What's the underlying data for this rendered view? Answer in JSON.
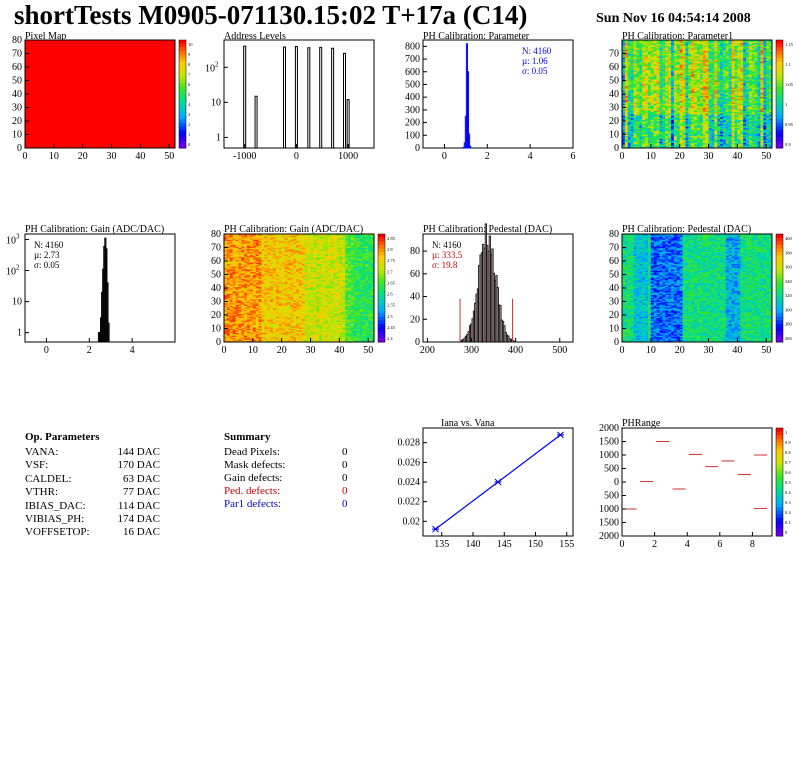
{
  "header": {
    "title": "shortTests M0905-071130.15:02 T+17a (C14)",
    "date": "Sun Nov 16 04:54:14 2008"
  },
  "colors": {
    "histogram": "#000000",
    "fit_blue": "#0000ff",
    "stats_red": "#cc0000",
    "ped_fill": "#cc3333",
    "pixel_map_fill": "#ff0000"
  },
  "colorbar_ticks": {
    "pixel_map": [
      "10",
      "9",
      "8",
      "7",
      "6",
      "5",
      "4",
      "3",
      "2",
      "1",
      "0"
    ],
    "parameter1": [
      "1.15",
      "1.1",
      "1.05",
      "1",
      "0.95",
      "0.9"
    ],
    "gain_map": [
      "2.85",
      "2.8",
      "2.75",
      "2.7",
      "2.65",
      "2.6",
      "2.55",
      "2.5",
      "2.45",
      "2.4"
    ],
    "pedestal_map": [
      "400",
      "380",
      "360",
      "340",
      "320",
      "300",
      "280",
      "260"
    ],
    "phrange": [
      "1",
      "0.9",
      "0.8",
      "0.7",
      "0.6",
      "0.5",
      "0.4",
      "0.3",
      "0.2",
      "0.1",
      "0"
    ]
  },
  "chart_data": [
    {
      "id": "pixel_map",
      "type": "heatmap",
      "title": "Pixel Map",
      "xlim": [
        0,
        52
      ],
      "ylim": [
        0,
        80
      ],
      "x_ticks": [
        "0",
        "10",
        "20",
        "30",
        "40",
        "50"
      ],
      "y_ticks": [
        "0",
        "10",
        "20",
        "30",
        "40",
        "50",
        "60",
        "70",
        "80"
      ],
      "uniform_value": 10,
      "z_range": [
        0,
        10
      ]
    },
    {
      "id": "address_levels",
      "type": "bar",
      "title": "Address Levels",
      "x_ticks": [
        "-1000",
        "0",
        "1000"
      ],
      "xlim": [
        -1400,
        1500
      ],
      "log_y": true,
      "ylim": [
        0.5,
        600
      ],
      "y_ticks": [
        "1",
        "10",
        "10^2"
      ],
      "peaks": [
        {
          "x": -1000,
          "y": 400
        },
        {
          "x": -780,
          "y": 15
        },
        {
          "x": -230,
          "y": 380
        },
        {
          "x": 0,
          "y": 390
        },
        {
          "x": 240,
          "y": 360
        },
        {
          "x": 470,
          "y": 370
        },
        {
          "x": 700,
          "y": 350
        },
        {
          "x": 930,
          "y": 250
        },
        {
          "x": 1000,
          "y": 12
        }
      ]
    },
    {
      "id": "ph_parameter",
      "type": "bar",
      "title": "PH Calibration: Parameter",
      "xlim": [
        -1,
        6
      ],
      "ylim": [
        0,
        850
      ],
      "x_ticks": [
        "0",
        "2",
        "4",
        "6"
      ],
      "y_ticks": [
        "0",
        "100",
        "200",
        "300",
        "400",
        "500",
        "600",
        "700",
        "800"
      ],
      "stats": {
        "n": "N: 4160",
        "mu": "µ: 1.06",
        "sigma": "σ: 0.05"
      },
      "bins": [
        {
          "x": 0.9,
          "y": 5
        },
        {
          "x": 0.95,
          "y": 40
        },
        {
          "x": 1.0,
          "y": 250
        },
        {
          "x": 1.05,
          "y": 820
        },
        {
          "x": 1.1,
          "y": 600
        },
        {
          "x": 1.15,
          "y": 110
        },
        {
          "x": 1.2,
          "y": 15
        }
      ]
    },
    {
      "id": "ph_parameter1",
      "type": "heatmap",
      "title": "PH Calibration: Parameter1",
      "xlim": [
        0,
        52
      ],
      "ylim": [
        0,
        80
      ],
      "x_ticks": [
        "0",
        "10",
        "20",
        "30",
        "40",
        "50"
      ],
      "y_ticks": [
        "0",
        "10",
        "20",
        "30",
        "40",
        "50",
        "60",
        "70"
      ],
      "z_range": [
        0.88,
        1.17
      ]
    },
    {
      "id": "ph_gain",
      "type": "bar",
      "title": "PH Calibration: Gain (ADC/DAC)",
      "xlim": [
        -1,
        6
      ],
      "log_y": true,
      "ylim": [
        0.5,
        1500
      ],
      "x_ticks": [
        "0",
        "2",
        "4"
      ],
      "y_ticks": [
        "1",
        "10",
        "10^2",
        "10^3"
      ],
      "stats": {
        "n": "N: 4160",
        "mu": "µ: 2.73",
        "sigma": "σ: 0.05"
      },
      "bins": [
        {
          "x": 2.45,
          "y": 1
        },
        {
          "x": 2.5,
          "y": 1
        },
        {
          "x": 2.55,
          "y": 3
        },
        {
          "x": 2.6,
          "y": 20
        },
        {
          "x": 2.65,
          "y": 110
        },
        {
          "x": 2.7,
          "y": 600
        },
        {
          "x": 2.75,
          "y": 1100
        },
        {
          "x": 2.8,
          "y": 500
        },
        {
          "x": 2.85,
          "y": 40
        },
        {
          "x": 2.9,
          "y": 2
        }
      ]
    },
    {
      "id": "gain_map",
      "type": "heatmap",
      "title": "PH Calibration: Gain (ADC/DAC)",
      "xlim": [
        0,
        52
      ],
      "ylim": [
        0,
        80
      ],
      "x_ticks": [
        "0",
        "10",
        "20",
        "30",
        "40",
        "50"
      ],
      "y_ticks": [
        "0",
        "10",
        "20",
        "30",
        "40",
        "50",
        "60",
        "70",
        "80"
      ],
      "z_range": [
        2.4,
        2.85
      ]
    },
    {
      "id": "ph_pedestal",
      "type": "bar",
      "title": "PH Calibration: Pedestal (DAC)",
      "xlim": [
        190,
        530
      ],
      "ylim": [
        0,
        95
      ],
      "x_ticks": [
        "200",
        "300",
        "400",
        "500"
      ],
      "y_ticks": [
        "0",
        "20",
        "40",
        "60",
        "80"
      ],
      "stats": {
        "n": "N: 4160",
        "mu": "µ: 333.5",
        "sigma": "σ: 19.8"
      },
      "cut_lines": [
        274,
        393
      ],
      "mean": 333.5,
      "sigma": 19.8,
      "peak": 92
    },
    {
      "id": "pedestal_map",
      "type": "heatmap",
      "title": "PH Calibration: Pedestal (DAC)",
      "xlim": [
        0,
        52
      ],
      "ylim": [
        0,
        80
      ],
      "x_ticks": [
        "0",
        "10",
        "20",
        "30",
        "40",
        "50"
      ],
      "y_ticks": [
        "0",
        "10",
        "20",
        "30",
        "40",
        "50",
        "60",
        "70",
        "80"
      ],
      "z_range": [
        250,
        410
      ]
    },
    {
      "id": "iana_vs_vana",
      "type": "line",
      "title": "Iana vs. Vana",
      "xlim": [
        132,
        156
      ],
      "ylim": [
        0.0185,
        0.0295
      ],
      "x_ticks": [
        "135",
        "140",
        "145",
        "150",
        "155"
      ],
      "y_ticks": [
        "0.02",
        "0.022",
        "0.024",
        "0.026",
        "0.028"
      ],
      "x": [
        134,
        144,
        154
      ],
      "y": [
        0.0192,
        0.024,
        0.0288
      ]
    },
    {
      "id": "phrange",
      "type": "scatter",
      "title": "PHRange",
      "xlim": [
        0,
        9.2
      ],
      "ylim": [
        -2000,
        2000
      ],
      "x_ticks": [
        "0",
        "2",
        "4",
        "6",
        "8"
      ],
      "y_ticks": [
        "2000",
        "1500",
        "1000",
        "500",
        "0",
        "-500",
        "-1000",
        "-1500",
        "-2000"
      ],
      "y_tick_labels": [
        "2000",
        "1500",
        "1000",
        "500",
        "0",
        "500",
        "1000",
        "1500",
        "2000"
      ],
      "segments": [
        {
          "x0": 0,
          "x1": 1,
          "y": -1000
        },
        {
          "x0": 1,
          "x1": 2,
          "y": 20
        },
        {
          "x0": 2,
          "x1": 3,
          "y": 1500
        },
        {
          "x0": 3,
          "x1": 4,
          "y": -260
        },
        {
          "x0": 4,
          "x1": 5,
          "y": 1020
        },
        {
          "x0": 5,
          "x1": 6,
          "y": 570
        },
        {
          "x0": 6,
          "x1": 7,
          "y": 780
        },
        {
          "x0": 7,
          "x1": 8,
          "y": 280
        },
        {
          "x0": 8,
          "x1": 9,
          "y": 1000
        },
        {
          "x0": 8,
          "x1": 9,
          "y": -980
        }
      ]
    }
  ],
  "op_params": {
    "heading": "Op. Parameters",
    "rows": [
      {
        "name": "VANA:",
        "value": "144 DAC"
      },
      {
        "name": "VSF:",
        "value": "170 DAC"
      },
      {
        "name": "CALDEL:",
        "value": "63 DAC"
      },
      {
        "name": "VTHR:",
        "value": "77 DAC"
      },
      {
        "name": "IBIAS_DAC:",
        "value": "114 DAC"
      },
      {
        "name": "VIBIAS_PH:",
        "value": "174 DAC"
      },
      {
        "name": "VOFFSETOP:",
        "value": "16 DAC"
      }
    ]
  },
  "summary": {
    "heading": "Summary",
    "rows": [
      {
        "name": "Dead Pixels:",
        "value": "0",
        "color": "#000000"
      },
      {
        "name": "Mask defects:",
        "value": "0",
        "color": "#000000"
      },
      {
        "name": "Gain defects:",
        "value": "0",
        "color": "#000000"
      },
      {
        "name": "Ped. defects:",
        "value": "0",
        "color": "#cc0000"
      },
      {
        "name": "Par1 defects:",
        "value": "0",
        "color": "#0000cc"
      }
    ]
  }
}
